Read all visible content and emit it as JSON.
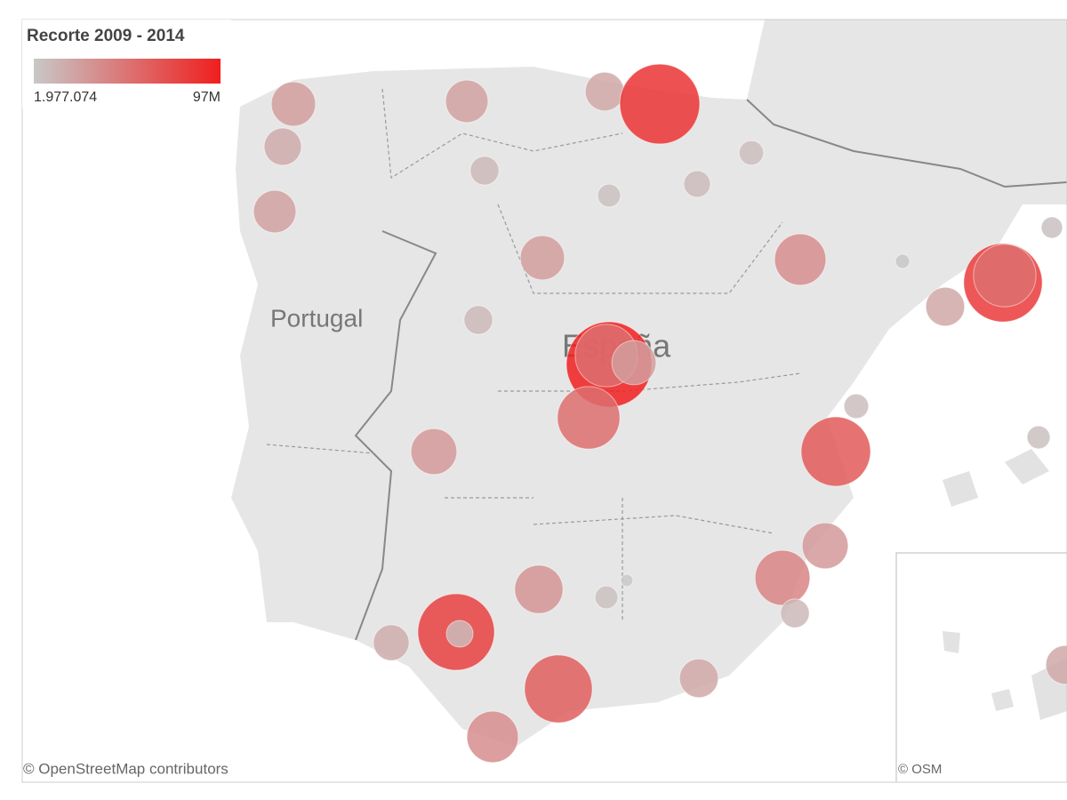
{
  "map": {
    "legend": {
      "title": "Recorte 2009 - 2014",
      "range": [
        {
          "value": 1977074,
          "label": "1.977.074"
        },
        {
          "value": 97000000,
          "label": "97M"
        }
      ],
      "colors": [
        "#c8c8c8",
        "#f01e1e"
      ]
    },
    "labels": [
      "Portugal",
      "España"
    ],
    "attribution": "© OpenStreetMap contributors",
    "inset_attribution": "© OSM",
    "bubbles": [
      26000000,
      18500000,
      24000000,
      24000000,
      20000000,
      85000000,
      11000000,
      7000000,
      9500000,
      8000000,
      26000000,
      35000000,
      11000000,
      97000000,
      52000000,
      26000000,
      52000000,
      82000000,
      52000000,
      6000000,
      2700000,
      20000000,
      8000000,
      7000000,
      28000000,
      64000000,
      28000000,
      40000000,
      11000000,
      31000000,
      7000000,
      2000000,
      78000000,
      9500000,
      17000000,
      61000000,
      20000000,
      35000000,
      20000000
    ]
  }
}
